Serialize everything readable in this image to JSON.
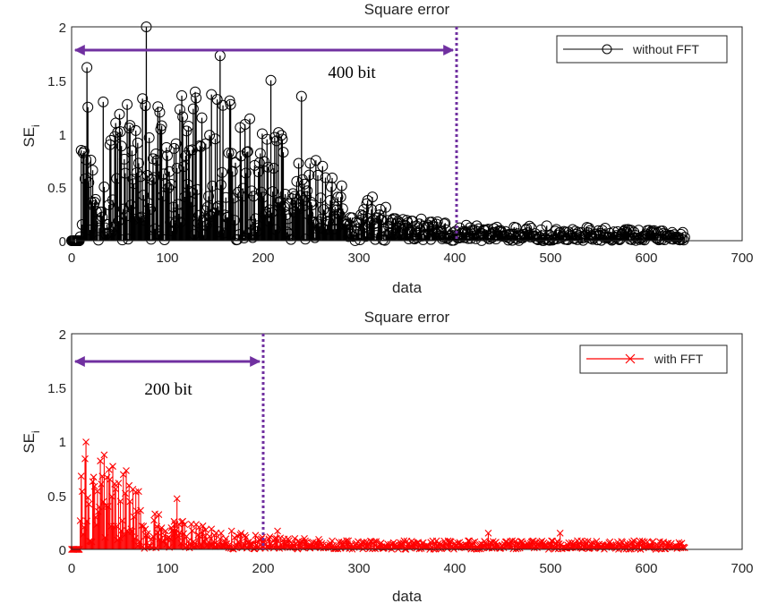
{
  "chart_data": [
    {
      "type": "stem",
      "title": "Square error",
      "xlabel": "data",
      "ylabel_main": "SE",
      "ylabel_sub": "i",
      "xlim": [
        0,
        700
      ],
      "ylim": [
        0,
        2
      ],
      "xticks": [
        "0",
        "100",
        "200",
        "300",
        "400",
        "500",
        "600",
        "700"
      ],
      "yticks": [
        "0",
        "0.5",
        "1",
        "1.5",
        "2"
      ],
      "grid": false,
      "legend_position": "top-right",
      "series": [
        {
          "name": "without FFT",
          "color": "#000000",
          "marker": "circle"
        }
      ],
      "envelope": {
        "x": [
          0,
          8,
          10,
          20,
          40,
          60,
          78,
          100,
          130,
          155,
          180,
          200,
          220,
          240,
          260,
          280,
          300,
          320,
          340,
          360,
          380,
          400,
          450,
          500,
          550,
          600,
          640
        ],
        "y": [
          0,
          0,
          1.1,
          1.4,
          1.3,
          1.35,
          1.45,
          1.35,
          1.4,
          1.5,
          1.25,
          1.28,
          1.0,
          0.9,
          0.75,
          0.6,
          0.35,
          0.45,
          0.2,
          0.22,
          0.18,
          0.15,
          0.14,
          0.14,
          0.12,
          0.1,
          0.08
        ]
      },
      "notable_points": [
        {
          "x": 16,
          "y": 1.62
        },
        {
          "x": 78,
          "y": 2.0
        },
        {
          "x": 155,
          "y": 1.73
        },
        {
          "x": 208,
          "y": 1.5
        },
        {
          "x": 240,
          "y": 1.35
        }
      ],
      "n_points": 640,
      "annotation": {
        "text": "400 bit",
        "x_start": 0,
        "x_end": 400,
        "y": 1.78,
        "marker_x": 400,
        "color": "#7030A0"
      }
    },
    {
      "type": "stem",
      "title": "Square error",
      "xlabel": "data",
      "ylabel_main": "SE",
      "ylabel_sub": "i",
      "xlim": [
        0,
        700
      ],
      "ylim": [
        0,
        2
      ],
      "xticks": [
        "0",
        "100",
        "200",
        "300",
        "400",
        "500",
        "600",
        "700"
      ],
      "yticks": [
        "0",
        "0.5",
        "1",
        "1.5",
        "2"
      ],
      "grid": false,
      "legend_position": "top-right",
      "series": [
        {
          "name": "with FFT",
          "color": "#FF0000",
          "marker": "x"
        }
      ],
      "envelope": {
        "x": [
          0,
          8,
          10,
          25,
          40,
          60,
          80,
          100,
          130,
          160,
          200,
          250,
          300,
          400,
          500,
          600,
          640
        ],
        "y": [
          0,
          0,
          1.0,
          1.0,
          0.8,
          0.65,
          0.45,
          0.35,
          0.25,
          0.2,
          0.12,
          0.1,
          0.08,
          0.08,
          0.08,
          0.08,
          0.07
        ]
      },
      "notable_points": [
        {
          "x": 30,
          "y": 0.82
        },
        {
          "x": 57,
          "y": 0.73
        },
        {
          "x": 110,
          "y": 0.47
        },
        {
          "x": 215,
          "y": 0.17
        },
        {
          "x": 435,
          "y": 0.15
        },
        {
          "x": 510,
          "y": 0.15
        }
      ],
      "n_points": 640,
      "annotation": {
        "text": "200 bit",
        "x_start": 0,
        "x_end": 200,
        "y": 1.75,
        "marker_x": 200,
        "color": "#7030A0"
      }
    }
  ]
}
